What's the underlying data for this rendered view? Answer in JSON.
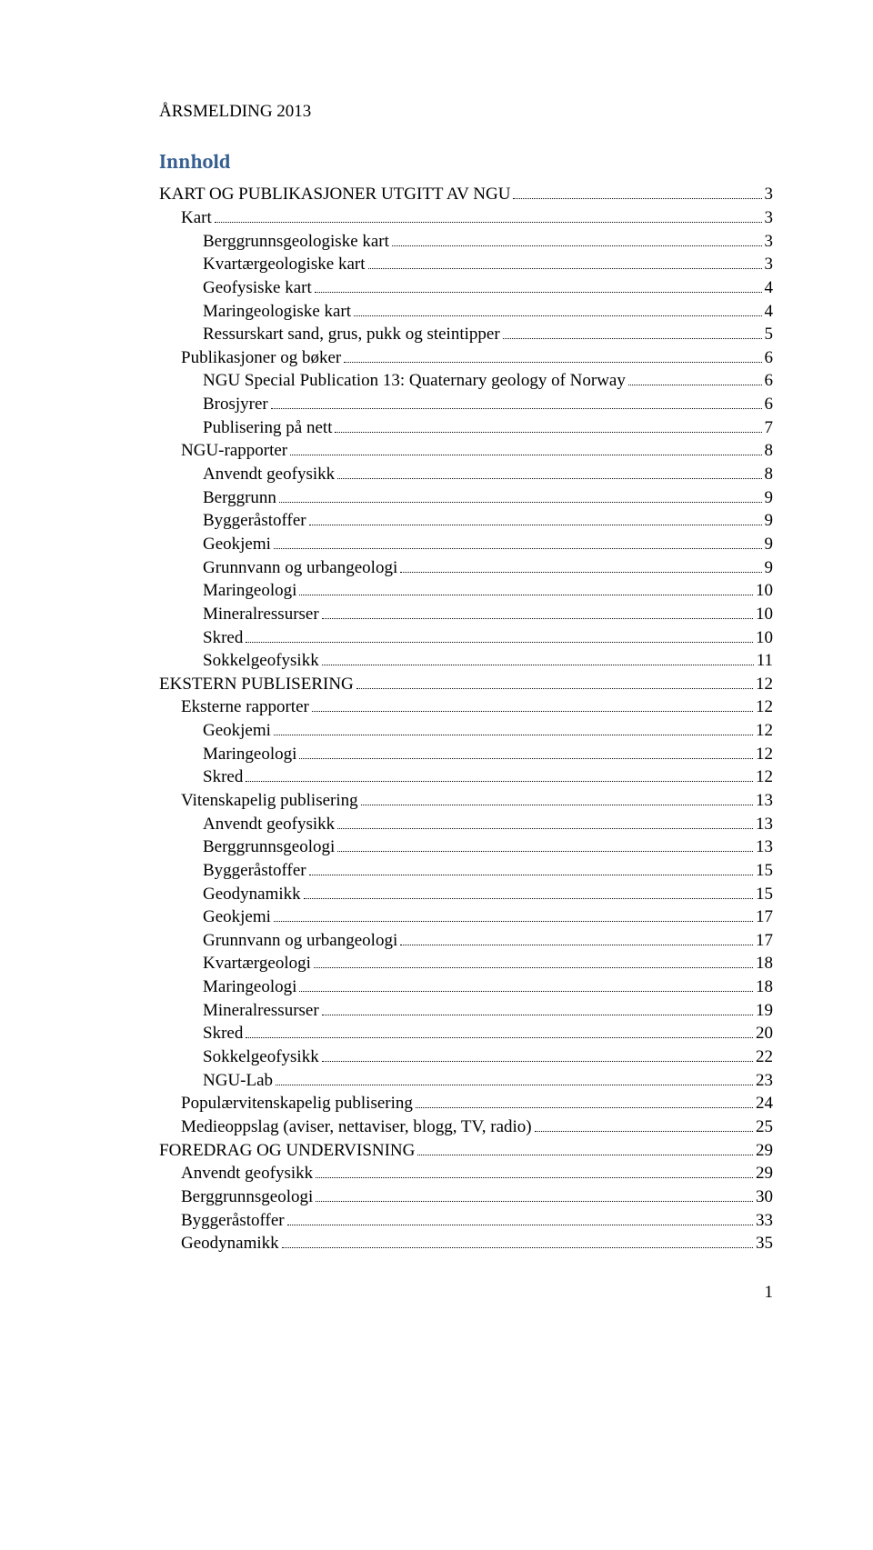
{
  "document_title": "ÅRSMELDING 2013",
  "heading": "Innhold",
  "page_number": "1",
  "toc": [
    {
      "label": "KART OG PUBLIKASJONER UTGITT AV NGU",
      "page": "3",
      "indent": 0
    },
    {
      "label": "Kart",
      "page": "3",
      "indent": 1
    },
    {
      "label": "Berggrunnsgeologiske kart",
      "page": "3",
      "indent": 2
    },
    {
      "label": "Kvartærgeologiske kart",
      "page": "3",
      "indent": 2
    },
    {
      "label": "Geofysiske kart",
      "page": "4",
      "indent": 2
    },
    {
      "label": "Maringeologiske kart",
      "page": "4",
      "indent": 2
    },
    {
      "label": "Ressurskart sand, grus, pukk og steintipper",
      "page": "5",
      "indent": 2
    },
    {
      "label": "Publikasjoner og bøker",
      "page": "6",
      "indent": 1
    },
    {
      "label": "NGU Special Publication 13: Quaternary geology of Norway",
      "page": "6",
      "indent": 2
    },
    {
      "label": "Brosjyrer",
      "page": "6",
      "indent": 2
    },
    {
      "label": "Publisering på nett",
      "page": "7",
      "indent": 2
    },
    {
      "label": "NGU-rapporter",
      "page": "8",
      "indent": 1
    },
    {
      "label": "Anvendt geofysikk",
      "page": "8",
      "indent": 2
    },
    {
      "label": "Berggrunn",
      "page": "9",
      "indent": 2
    },
    {
      "label": "Byggeråstoffer",
      "page": "9",
      "indent": 2
    },
    {
      "label": "Geokjemi",
      "page": "9",
      "indent": 2
    },
    {
      "label": "Grunnvann og urbangeologi",
      "page": "9",
      "indent": 2
    },
    {
      "label": "Maringeologi",
      "page": "10",
      "indent": 2
    },
    {
      "label": "Mineralressurser",
      "page": "10",
      "indent": 2
    },
    {
      "label": "Skred",
      "page": "10",
      "indent": 2
    },
    {
      "label": "Sokkelgeofysikk",
      "page": "11",
      "indent": 2
    },
    {
      "label": "EKSTERN PUBLISERING",
      "page": "12",
      "indent": 0
    },
    {
      "label": "Eksterne rapporter",
      "page": "12",
      "indent": 1
    },
    {
      "label": "Geokjemi",
      "page": "12",
      "indent": 2
    },
    {
      "label": "Maringeologi",
      "page": "12",
      "indent": 2
    },
    {
      "label": "Skred",
      "page": "12",
      "indent": 2
    },
    {
      "label": "Vitenskapelig publisering",
      "page": "13",
      "indent": 1
    },
    {
      "label": "Anvendt geofysikk",
      "page": "13",
      "indent": 2
    },
    {
      "label": "Berggrunnsgeologi",
      "page": "13",
      "indent": 2
    },
    {
      "label": "Byggeråstoffer",
      "page": "15",
      "indent": 2
    },
    {
      "label": "Geodynamikk",
      "page": "15",
      "indent": 2
    },
    {
      "label": "Geokjemi",
      "page": "17",
      "indent": 2
    },
    {
      "label": "Grunnvann og urbangeologi",
      "page": "17",
      "indent": 2
    },
    {
      "label": "Kvartærgeologi",
      "page": "18",
      "indent": 2
    },
    {
      "label": "Maringeologi",
      "page": "18",
      "indent": 2
    },
    {
      "label": "Mineralressurser",
      "page": "19",
      "indent": 2
    },
    {
      "label": "Skred",
      "page": "20",
      "indent": 2
    },
    {
      "label": "Sokkelgeofysikk",
      "page": "22",
      "indent": 2
    },
    {
      "label": "NGU-Lab",
      "page": "23",
      "indent": 2
    },
    {
      "label": "Populærvitenskapelig publisering",
      "page": "24",
      "indent": 1
    },
    {
      "label": "Medieoppslag (aviser, nettaviser, blogg, TV, radio)",
      "page": "25",
      "indent": 1
    },
    {
      "label": "FOREDRAG OG UNDERVISNING",
      "page": "29",
      "indent": 0
    },
    {
      "label": "Anvendt geofysikk",
      "page": "29",
      "indent": 1
    },
    {
      "label": "Berggrunnsgeologi",
      "page": "30",
      "indent": 1
    },
    {
      "label": "Byggeråstoffer",
      "page": "33",
      "indent": 1
    },
    {
      "label": "Geodynamikk",
      "page": "35",
      "indent": 1
    }
  ]
}
